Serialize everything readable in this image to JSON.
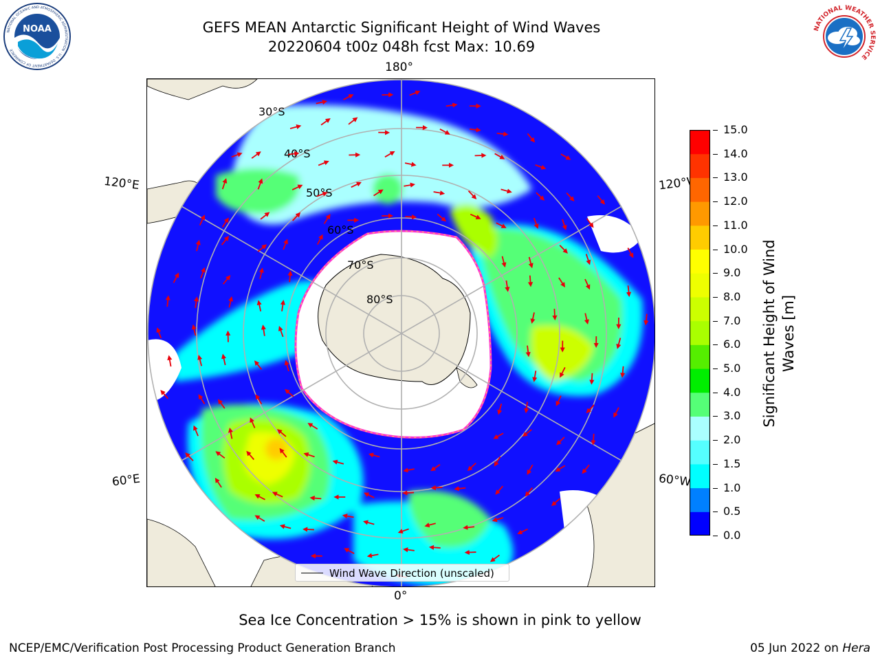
{
  "header": {
    "title_line1": "GEFS MEAN Antarctic Significant Height of Wind Waves",
    "title_line2": "20220604 t00z 048h fcst   Max: 10.69"
  },
  "logos": {
    "noaa": {
      "name": "noaa-logo",
      "text": "NOAA",
      "ring_text": "NATIONAL OCEANIC AND ATMOSPHERIC ADMINISTRATION · U.S. DEPARTMENT OF COMMERCE"
    },
    "nws": {
      "name": "nws-logo",
      "ring_text": "NATIONAL WEATHER SERVICE"
    }
  },
  "map": {
    "projection": "south-polar-stereographic",
    "longitude_labels": {
      "top": "180°",
      "bottom": "0°",
      "upper_left": "120°E",
      "upper_right": "120°W",
      "lower_left": "60°E",
      "lower_right": "60°W"
    },
    "latitude_labels": [
      "30°S",
      "40°S",
      "50°S",
      "60°S",
      "70°S",
      "80°S"
    ],
    "legend_label": "Wind Wave Direction (unscaled)",
    "colors": {
      "land": "#efebdc",
      "sea_ice_edge": [
        "#ff33cc",
        "#ffdd55"
      ],
      "arrows": "#e8000b",
      "graticule": "#b0b0b0"
    }
  },
  "colorbar": {
    "label": "Significant Height of Wind Waves [m]",
    "label_line1": "Significant Height of Wind",
    "label_line2": "Waves [m]",
    "ticks": [
      "0.0",
      "0.5",
      "1.0",
      "1.5",
      "2.0",
      "3.0",
      "4.0",
      "5.0",
      "6.0",
      "7.0",
      "8.0",
      "9.0",
      "10.0",
      "11.0",
      "12.0",
      "13.0",
      "14.0",
      "15.0"
    ],
    "colors": [
      "#0000ff",
      "#0080ff",
      "#00ffff",
      "#55ffff",
      "#aaffff",
      "#55ff77",
      "#00ee00",
      "#55ee00",
      "#aaff00",
      "#ccff00",
      "#eeff00",
      "#ffff00",
      "#ffcc00",
      "#ff9900",
      "#ff6600",
      "#ff3300",
      "#ff0000"
    ]
  },
  "caption": "Sea Ice Concentration > 15% is shown in pink to yellow",
  "footer": {
    "left": "NCEP/EMC/Verification Post Processing Product Generation Branch",
    "right_date": "05 Jun 2022 on ",
    "right_host": "Hera"
  }
}
